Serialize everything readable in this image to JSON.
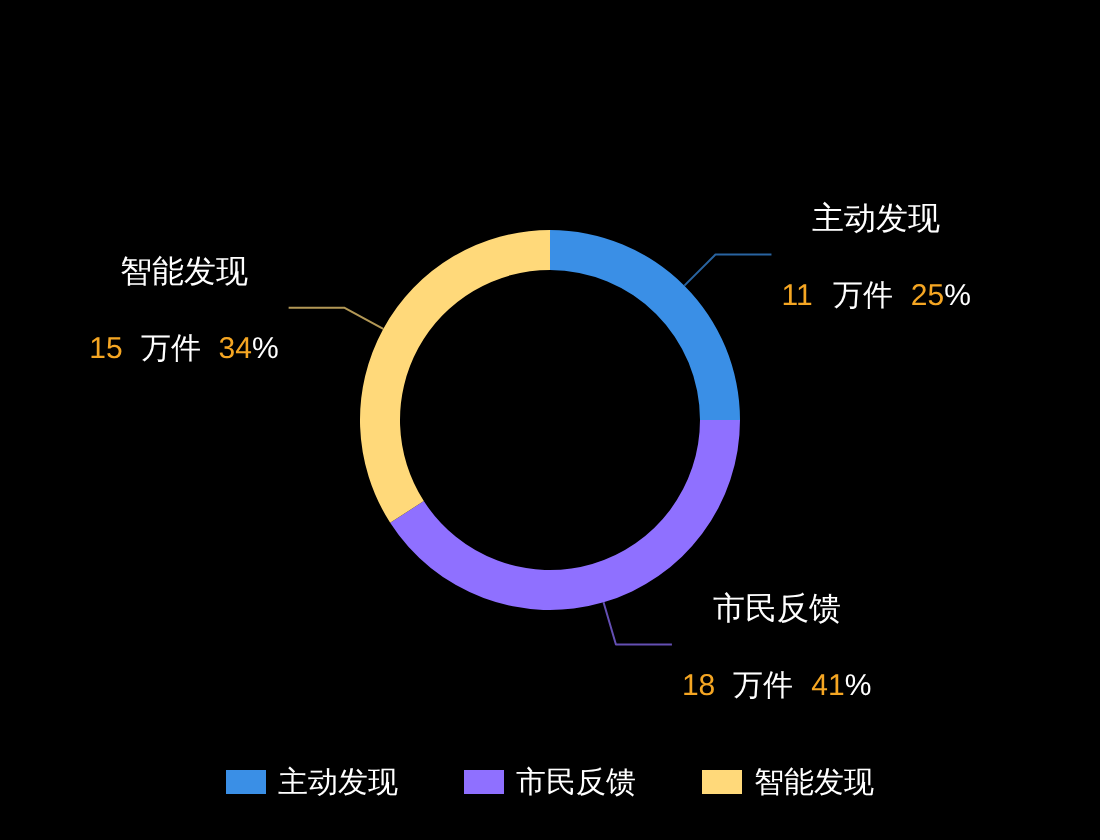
{
  "chart_data": {
    "type": "donut",
    "categories": [
      "主动发现",
      "市民反馈",
      "智能发现"
    ],
    "values": [
      11,
      18,
      15
    ],
    "colors": [
      "#3a8fe6",
      "#8f70ff",
      "#ffd97a"
    ],
    "value_labels": [
      "11 万件 25%",
      "18 万件 41%",
      "15 万件 34%"
    ],
    "legend": "bottom"
  }
}
